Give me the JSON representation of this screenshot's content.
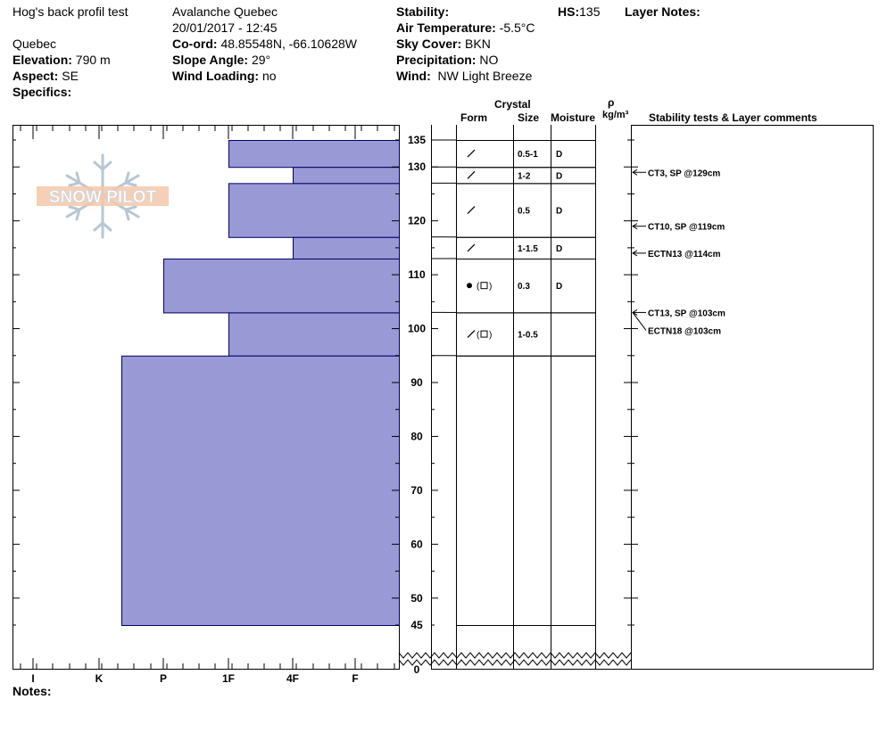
{
  "header": {
    "location_name": "Hog's back profil test",
    "region": "Quebec",
    "elevation_label": "Elevation:",
    "elevation": "790 m",
    "aspect_label": "Aspect:",
    "aspect": "SE",
    "specifics_label": "Specifics:",
    "observer": "Avalanche Quebec",
    "datetime": "20/01/2017 - 12:45",
    "coord_label": "Co-ord:",
    "coord": "48.85548N, -66.10628W",
    "slope_label": "Slope Angle:",
    "slope": "29°",
    "wind_loading_label": "Wind Loading:",
    "wind_loading": "no",
    "stability_label": "Stability:",
    "stability": "",
    "air_temp_label": "Air Temperature:",
    "air_temp": "-5.5°C",
    "sky_label": "Sky Cover:",
    "sky": "BKN",
    "precip_label": "Precipitation:",
    "precip": "NO",
    "wind_label": "Wind:",
    "wind": "NW Light Breeze",
    "hs_label": "HS:",
    "hs": "135",
    "layer_notes_label": "Layer Notes:"
  },
  "columns": {
    "crystal": "Crystal",
    "form": "Form",
    "size": "Size",
    "moisture": "Moisture",
    "rho": "ρ",
    "density_unit": "kg/m³",
    "stability_tests": "Stability tests & Layer comments"
  },
  "notes_label": "Notes:",
  "logo_text": "SNOW PILOT",
  "colors": {
    "layer_fill": "#9999d6",
    "layer_stroke": "#000066"
  },
  "chart_data": {
    "type": "bar",
    "orientation": "horizontal",
    "hardness_ticks": [
      "I",
      "K",
      "P",
      "1F",
      "4F",
      "F"
    ],
    "height_ticks": [
      135,
      130,
      120,
      110,
      100,
      90,
      80,
      70,
      60,
      50,
      45,
      0
    ],
    "ylim": [
      0,
      135
    ],
    "layers": [
      {
        "top": 135,
        "bottom": 130,
        "hardness": "1F",
        "form": "dfbk",
        "size": "0.5-1",
        "moisture": "D"
      },
      {
        "top": 130,
        "bottom": 127,
        "hardness": "4F",
        "form": "dfbk",
        "size": "1-2",
        "moisture": "D"
      },
      {
        "top": 127,
        "bottom": 117,
        "hardness": "1F",
        "form": "dfbk",
        "size": "0.5",
        "moisture": "D"
      },
      {
        "top": 117,
        "bottom": 113,
        "hardness": "4F",
        "form": "dfbk",
        "size": "1-1.5",
        "moisture": "D"
      },
      {
        "top": 113,
        "bottom": 103,
        "hardness": "P+",
        "form": "ice-facet",
        "size": "0.3",
        "moisture": "D"
      },
      {
        "top": 103,
        "bottom": 95,
        "hardness": "1F",
        "form": "dfbk-facet",
        "size": "1-0.5",
        "moisture": ""
      },
      {
        "top": 95,
        "bottom": 45,
        "hardness": "P-",
        "form": "",
        "size": "",
        "moisture": ""
      }
    ],
    "tests": [
      {
        "label": "CT3, SP @129cm",
        "depth": 129
      },
      {
        "label": "CT10, SP @119cm",
        "depth": 119
      },
      {
        "label": "ECTN13 @114cm",
        "depth": 114
      },
      {
        "label": "CT13, SP @103cm",
        "depth": 103
      },
      {
        "label": "ECTN18 @103cm",
        "depth": 103
      }
    ]
  }
}
